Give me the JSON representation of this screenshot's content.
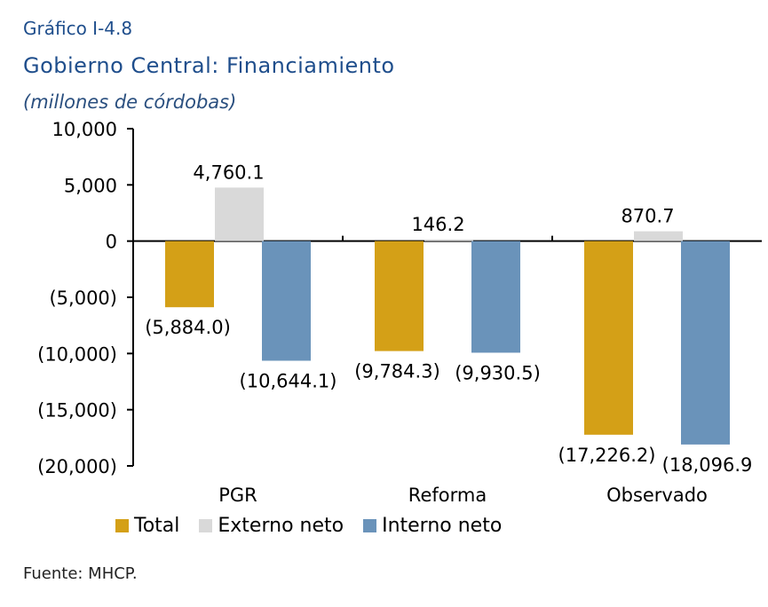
{
  "header": {
    "figure_number": "Gráfico I-4.8",
    "title": "Gobierno Central: Financiamiento",
    "units": "(millones de córdobas)"
  },
  "source": "Fuente: MHCP.",
  "colors": {
    "total": "#d4a017",
    "externo": "#d9d9d9",
    "interno": "#6a93ba"
  },
  "chart_data": {
    "type": "bar",
    "categories": [
      "PGR",
      "Reforma",
      "Observado"
    ],
    "series": [
      {
        "name": "Total",
        "values": [
          -5884.0,
          -9784.3,
          -17226.2
        ],
        "labels": [
          "(5,884.0)",
          "(9,784.3)",
          "(17,226.2)"
        ]
      },
      {
        "name": "Externo neto",
        "values": [
          4760.1,
          146.2,
          870.7
        ],
        "labels": [
          "4,760.1",
          "146.2",
          "870.7"
        ]
      },
      {
        "name": "Interno neto",
        "values": [
          -10644.1,
          -9930.5,
          -18096.9
        ],
        "labels": [
          "(10,644.1)",
          "(9,930.5)",
          "(18,096.9"
        ]
      }
    ],
    "ylim": [
      -20000,
      10000
    ],
    "yticks": [
      10000,
      5000,
      0,
      -5000,
      -10000,
      -15000,
      -20000
    ],
    "ytick_labels": [
      "10,000",
      "5,000",
      "0",
      "(5,000)",
      "(10,000)",
      "(15,000)",
      "(20,000)"
    ],
    "grid": false,
    "legend_position": "bottom"
  }
}
